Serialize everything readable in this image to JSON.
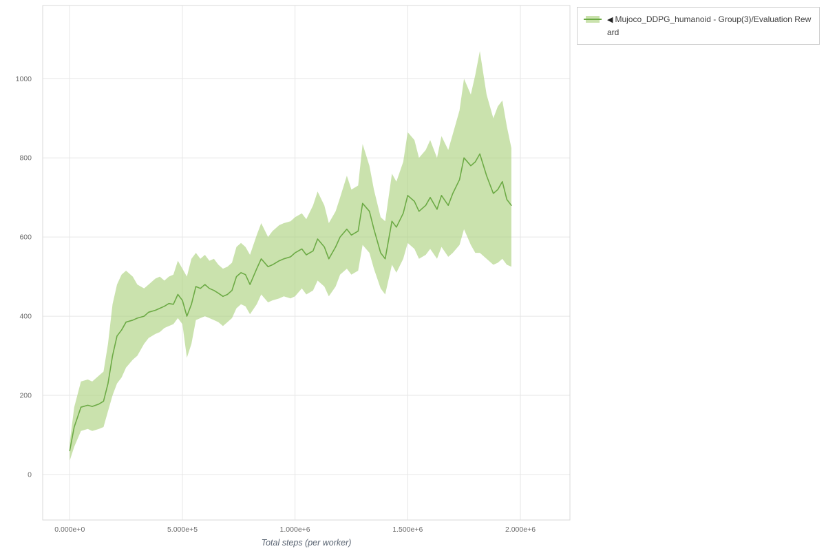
{
  "chart": {
    "legend": {
      "collapse_icon": "◀",
      "label": "Mujoco_DDPG_humanoid - Group(3)/Evaluation Reward"
    },
    "colors": {
      "line": "#6caa45",
      "band": "#a9d07a",
      "band_opacity": 0.62,
      "grid": "#e6e6e6",
      "frame": "#d9d9d9",
      "tick_text": "#696969",
      "axis_title": "#5a6472",
      "legend_text": "#3f3f3f",
      "legend_border": "#cfcfcf"
    }
  },
  "chart_data": {
    "type": "line",
    "title": "",
    "xlabel": "Total steps (per worker)",
    "ylabel": "",
    "legend_position": "top-right-outside",
    "grid": true,
    "xlim": [
      -120000,
      2220000
    ],
    "ylim": [
      -115,
      1185
    ],
    "x_ticks": [
      {
        "value": 0,
        "label": "0.000e+0"
      },
      {
        "value": 500000,
        "label": "5.000e+5"
      },
      {
        "value": 1000000,
        "label": "1.000e+6"
      },
      {
        "value": 1500000,
        "label": "1.500e+6"
      },
      {
        "value": 2000000,
        "label": "2.000e+6"
      }
    ],
    "y_ticks": [
      {
        "value": 0,
        "label": "0"
      },
      {
        "value": 200,
        "label": "200"
      },
      {
        "value": 400,
        "label": "400"
      },
      {
        "value": 600,
        "label": "600"
      },
      {
        "value": 800,
        "label": "800"
      },
      {
        "value": 1000,
        "label": "1000"
      }
    ],
    "x": [
      0,
      20000,
      50000,
      80000,
      100000,
      130000,
      150000,
      170000,
      190000,
      210000,
      230000,
      250000,
      280000,
      300000,
      330000,
      350000,
      380000,
      400000,
      420000,
      440000,
      460000,
      480000,
      500000,
      520000,
      540000,
      560000,
      580000,
      600000,
      620000,
      640000,
      660000,
      680000,
      700000,
      720000,
      740000,
      760000,
      780000,
      800000,
      830000,
      850000,
      880000,
      900000,
      930000,
      950000,
      980000,
      1000000,
      1030000,
      1050000,
      1080000,
      1100000,
      1130000,
      1150000,
      1180000,
      1200000,
      1230000,
      1250000,
      1280000,
      1300000,
      1330000,
      1350000,
      1380000,
      1400000,
      1430000,
      1450000,
      1480000,
      1500000,
      1530000,
      1550000,
      1580000,
      1600000,
      1630000,
      1650000,
      1680000,
      1700000,
      1730000,
      1750000,
      1780000,
      1800000,
      1820000,
      1850000,
      1880000,
      1900000,
      1920000,
      1940000,
      1960000
    ],
    "series": [
      {
        "name": "mean",
        "role": "line",
        "values": [
          60,
          120,
          170,
          175,
          172,
          178,
          185,
          230,
          300,
          350,
          365,
          385,
          390,
          395,
          400,
          410,
          415,
          420,
          425,
          432,
          430,
          455,
          440,
          400,
          430,
          475,
          470,
          480,
          470,
          465,
          458,
          450,
          455,
          465,
          500,
          510,
          505,
          480,
          520,
          545,
          525,
          530,
          540,
          545,
          550,
          560,
          570,
          555,
          565,
          595,
          575,
          545,
          575,
          600,
          620,
          605,
          615,
          685,
          665,
          620,
          560,
          545,
          640,
          625,
          660,
          705,
          690,
          665,
          680,
          700,
          670,
          705,
          680,
          710,
          745,
          800,
          780,
          790,
          810,
          755,
          710,
          720,
          740,
          695,
          680
        ]
      },
      {
        "name": "lower_bound",
        "role": "band-lower",
        "values": [
          35,
          70,
          110,
          115,
          110,
          115,
          120,
          160,
          200,
          230,
          245,
          270,
          290,
          300,
          330,
          345,
          355,
          360,
          370,
          375,
          380,
          395,
          380,
          295,
          330,
          390,
          395,
          400,
          395,
          390,
          385,
          375,
          385,
          395,
          420,
          430,
          425,
          405,
          430,
          455,
          435,
          440,
          445,
          450,
          445,
          450,
          470,
          455,
          465,
          490,
          475,
          450,
          475,
          505,
          520,
          505,
          515,
          580,
          560,
          520,
          470,
          455,
          530,
          510,
          545,
          585,
          570,
          545,
          555,
          570,
          545,
          575,
          550,
          560,
          580,
          620,
          580,
          560,
          560,
          545,
          530,
          535,
          545,
          530,
          525
        ]
      },
      {
        "name": "upper_bound",
        "role": "band-upper",
        "values": [
          80,
          170,
          235,
          240,
          235,
          250,
          260,
          330,
          430,
          480,
          505,
          515,
          500,
          480,
          470,
          480,
          495,
          500,
          490,
          500,
          505,
          540,
          520,
          500,
          545,
          560,
          545,
          555,
          540,
          545,
          530,
          520,
          525,
          535,
          575,
          585,
          575,
          555,
          605,
          635,
          600,
          615,
          630,
          635,
          640,
          650,
          660,
          645,
          680,
          715,
          680,
          635,
          665,
          700,
          755,
          720,
          730,
          835,
          780,
          720,
          650,
          640,
          760,
          740,
          790,
          865,
          845,
          800,
          820,
          845,
          800,
          855,
          820,
          860,
          920,
          1000,
          960,
          1010,
          1070,
          960,
          900,
          930,
          945,
          880,
          825
        ]
      }
    ]
  }
}
